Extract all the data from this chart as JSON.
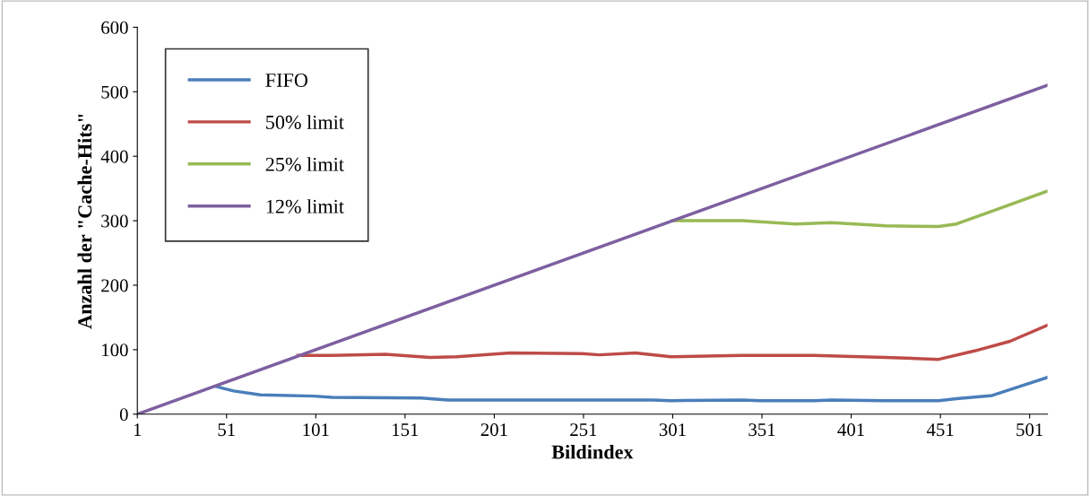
{
  "chart_data": {
    "type": "line",
    "xlabel": "Bildindex",
    "ylabel": "Anzahl der \"Cache-Hits\"",
    "xlim": [
      1,
      511
    ],
    "xticks": [
      1,
      51,
      101,
      151,
      201,
      251,
      301,
      351,
      401,
      451,
      501
    ],
    "ylim": [
      0,
      600
    ],
    "yticks": [
      0,
      100,
      200,
      300,
      400,
      500,
      600
    ],
    "grid": false,
    "legend": "top left",
    "marker": "none",
    "line_style": "solid",
    "series": [
      {
        "name": "FIFO",
        "color": "#4a7ebb",
        "x": [
          45,
          55,
          70,
          100,
          110,
          160,
          175,
          290,
          300,
          340,
          350,
          380,
          390,
          420,
          450,
          460,
          480,
          500,
          511
        ],
        "values": [
          43,
          36,
          30,
          28,
          26,
          25,
          22,
          22,
          21,
          22,
          21,
          21,
          22,
          21,
          21,
          24,
          29,
          47,
          57
        ]
      },
      {
        "name": "50% limit",
        "color": "#be4b48",
        "x": [
          91,
          110,
          140,
          165,
          180,
          210,
          250,
          260,
          280,
          300,
          340,
          380,
          420,
          450,
          470,
          490,
          511
        ],
        "values": [
          91,
          91,
          93,
          88,
          89,
          95,
          94,
          92,
          95,
          89,
          91,
          91,
          88,
          85,
          98,
          113,
          138
        ]
      },
      {
        "name": "25% limit",
        "color": "#98b954",
        "x": [
          301,
          340,
          370,
          390,
          420,
          450,
          460,
          480,
          511
        ],
        "values": [
          300,
          300,
          295,
          297,
          292,
          291,
          295,
          315,
          346
        ]
      },
      {
        "name": "12% limit",
        "color": "#7d60a0",
        "x": [
          1,
          511
        ],
        "values": [
          0,
          510
        ]
      }
    ]
  }
}
